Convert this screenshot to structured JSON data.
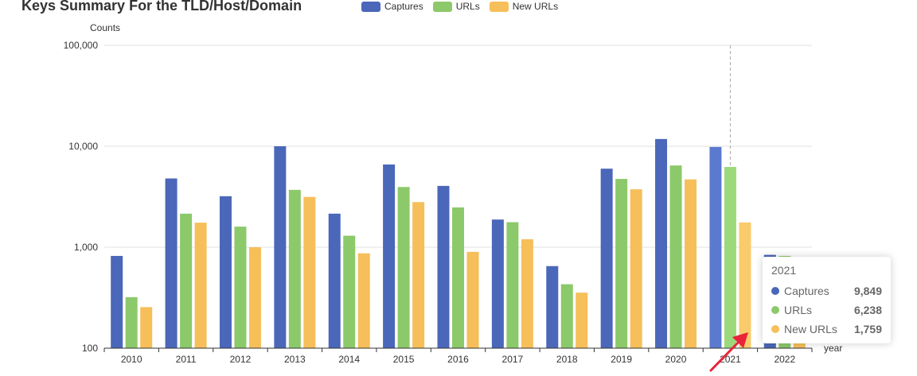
{
  "title": "Keys Summary For the TLD/Host/Domain",
  "colors": {
    "captures": "#4b67b9",
    "urls": "#8cc96a",
    "new_urls": "#f6bf5a",
    "arrow": "#e8233a"
  },
  "chart_data": {
    "type": "bar",
    "ylabel": "Counts",
    "xlabel": "year",
    "yscale": "log",
    "ylim": [
      100,
      100000
    ],
    "yticks": [
      "100",
      "1,000",
      "10,000",
      "100,000"
    ],
    "categories": [
      "2010",
      "2011",
      "2012",
      "2013",
      "2014",
      "2015",
      "2016",
      "2017",
      "2018",
      "2019",
      "2020",
      "2021",
      "2022"
    ],
    "series": [
      {
        "name": "Captures",
        "values": [
          820,
          4800,
          3200,
          10000,
          2150,
          6600,
          4050,
          1880,
          650,
          6000,
          11800,
          9849,
          840
        ]
      },
      {
        "name": "URLs",
        "values": [
          320,
          2150,
          1600,
          3700,
          1300,
          3950,
          2480,
          1770,
          430,
          4750,
          6450,
          6238,
          820
        ]
      },
      {
        "name": "New URLs",
        "values": [
          255,
          1750,
          1000,
          3150,
          870,
          2800,
          900,
          1200,
          355,
          3750,
          4700,
          1759,
          160
        ]
      }
    ],
    "legend": "top",
    "grid": true,
    "highlight_category": "2021"
  },
  "tooltip": {
    "title": "2021",
    "rows": [
      {
        "label": "Captures",
        "value": "9,849"
      },
      {
        "label": "URLs",
        "value": "6,238"
      },
      {
        "label": "New URLs",
        "value": "1,759"
      }
    ]
  }
}
